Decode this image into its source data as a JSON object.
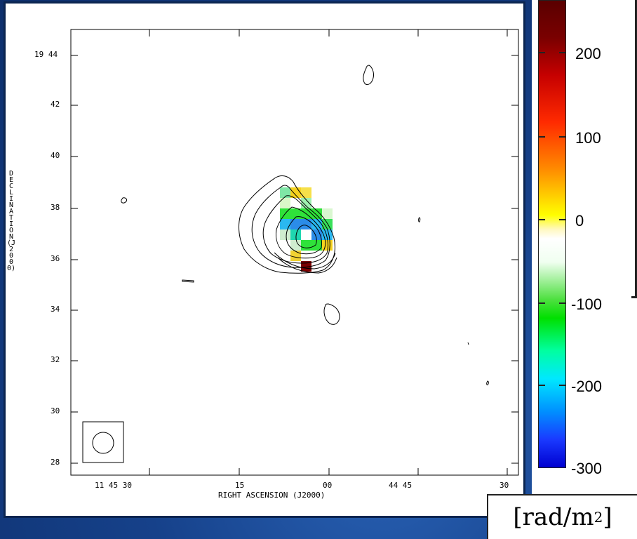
{
  "figure": {
    "declination_ticks": [
      "19 44",
      "42",
      "40",
      "38",
      "36",
      "34",
      "32",
      "30",
      "28"
    ],
    "ra_ticks": [
      "11 45 30",
      "15",
      "00",
      "44 45",
      "30"
    ],
    "y_axis_title": "DECLINATION (J2000)",
    "x_axis_title": "RIGHT ASCENSION (J2000)"
  },
  "colorbar": {
    "labels": [
      "200",
      "100",
      "0",
      "-100",
      "-200",
      "-300"
    ],
    "unit_text": "[rad/m",
    "unit_power": "2",
    "unit_close": "]",
    "colors": {
      "top": "#5a0000",
      "red": "#ff2a00",
      "yellow": "#ffff00",
      "white": "#ffffff",
      "green": "#00e000",
      "cyan": "#00e8ff",
      "blue": "#0000d0"
    }
  },
  "rm_pixels": [
    [
      "#7fe6a6",
      "#f6d21e",
      "#f6e04a",
      "",
      ""
    ],
    [
      "#d9f7c8",
      "#ffffff",
      "#9ff0b0",
      "",
      ""
    ],
    [
      "#2fe23a",
      "#2fe23a",
      "#2fe23a",
      "#2fe23a",
      "#d9f7d0"
    ],
    [
      "#2ab8f0",
      "#2b8ce8",
      "#2b8ce8",
      "#2ab8f0",
      "#38e05a"
    ],
    [
      "#cfeccf",
      "#1fd6b0",
      "#ffffff",
      "#2b8ce8",
      "#2ab8f0"
    ],
    [
      "",
      "#cfeccf",
      "#2fe23a",
      "#2fe23a",
      "#f6d21e"
    ],
    [
      "",
      "#f0d232",
      "",
      "",
      ""
    ],
    [
      "",
      "",
      "#7a0000",
      "",
      ""
    ]
  ]
}
